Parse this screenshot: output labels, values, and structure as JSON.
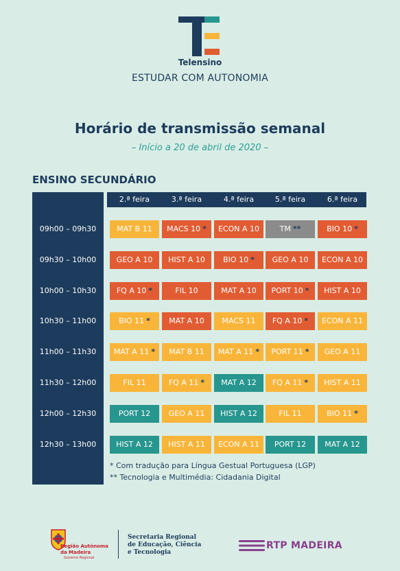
{
  "brand": {
    "name": "Telensino",
    "tagline": "ESTUDAR COM AUTONOMIA"
  },
  "title": "Horário de transmissão semanal",
  "subtitle": "– Início a 20 de abril de 2020 –",
  "section": "ENSINO SECUNDÁRIO",
  "days": [
    "2.ª feira",
    "3.ª feira",
    "4.ª feira",
    "5.ª feira",
    "6.ª feira"
  ],
  "rows": [
    {
      "time": "09h00 – 09h30",
      "cells": [
        {
          "label": "MAT B 11",
          "mark": "",
          "color": "yellow"
        },
        {
          "label": "MACS 10",
          "mark": "*",
          "color": "orange"
        },
        {
          "label": "ECON A 10",
          "mark": "",
          "color": "orange"
        },
        {
          "label": "TM",
          "mark": "**",
          "color": "gray"
        },
        {
          "label": "BIO 10",
          "mark": "*",
          "color": "orange"
        }
      ]
    },
    {
      "time": "09h30 – 10h00",
      "cells": [
        {
          "label": "GEO A 10",
          "mark": "",
          "color": "orange"
        },
        {
          "label": "HIST A 10",
          "mark": "",
          "color": "orange"
        },
        {
          "label": "BIO 10",
          "mark": "*",
          "color": "orange"
        },
        {
          "label": "GEO A 10",
          "mark": "",
          "color": "orange"
        },
        {
          "label": "ECON A 10",
          "mark": "",
          "color": "orange"
        }
      ]
    },
    {
      "time": "10h00 – 10h30",
      "cells": [
        {
          "label": "FQ A 10",
          "mark": "*",
          "color": "orange"
        },
        {
          "label": "FIL 10",
          "mark": "",
          "color": "orange"
        },
        {
          "label": "MAT A 10",
          "mark": "",
          "color": "orange"
        },
        {
          "label": "PORT 10",
          "mark": "*",
          "color": "orange"
        },
        {
          "label": "HIST A 10",
          "mark": "",
          "color": "orange"
        }
      ]
    },
    {
      "time": "10h30 – 11h00",
      "cells": [
        {
          "label": "BIO 11",
          "mark": "*",
          "color": "yellow"
        },
        {
          "label": "MAT A 10",
          "mark": "",
          "color": "orange"
        },
        {
          "label": "MACS 11",
          "mark": "",
          "color": "yellow"
        },
        {
          "label": "FQ A 10",
          "mark": "*",
          "color": "orange"
        },
        {
          "label": "ECON A 11",
          "mark": "",
          "color": "yellow"
        }
      ]
    },
    {
      "time": "11h00 – 11h30",
      "cells": [
        {
          "label": "MAT A 11",
          "mark": "*",
          "color": "yellow"
        },
        {
          "label": "MAT B 11",
          "mark": "",
          "color": "yellow"
        },
        {
          "label": "MAT A 11",
          "mark": "*",
          "color": "yellow"
        },
        {
          "label": "PORT 11",
          "mark": "*",
          "color": "yellow"
        },
        {
          "label": "GEO A 11",
          "mark": "",
          "color": "yellow"
        }
      ]
    },
    {
      "time": "11h30 – 12h00",
      "cells": [
        {
          "label": "FIL 11",
          "mark": "",
          "color": "yellow"
        },
        {
          "label": "FQ A 11",
          "mark": "*",
          "color": "yellow"
        },
        {
          "label": "MAT A 12",
          "mark": "",
          "color": "teal"
        },
        {
          "label": "FQ A 11",
          "mark": "*",
          "color": "yellow"
        },
        {
          "label": "HIST A 11",
          "mark": "",
          "color": "yellow"
        }
      ]
    },
    {
      "time": "12h00 – 12h30",
      "cells": [
        {
          "label": "PORT 12",
          "mark": "",
          "color": "teal"
        },
        {
          "label": "GEO A 11",
          "mark": "",
          "color": "yellow"
        },
        {
          "label": "HIST A 12",
          "mark": "",
          "color": "teal"
        },
        {
          "label": "FIL 11",
          "mark": "",
          "color": "yellow"
        },
        {
          "label": "BIO 11",
          "mark": "*",
          "color": "yellow"
        }
      ]
    },
    {
      "time": "12h30 – 13h00",
      "cells": [
        {
          "label": "HIST A 12",
          "mark": "",
          "color": "teal"
        },
        {
          "label": "HIST A 11",
          "mark": "",
          "color": "yellow"
        },
        {
          "label": "ECON A 11",
          "mark": "",
          "color": "yellow"
        },
        {
          "label": "PORT 12",
          "mark": "",
          "color": "teal"
        },
        {
          "label": "MAT A 12",
          "mark": "",
          "color": "teal"
        }
      ]
    }
  ],
  "notes": [
    "* Com tradução para Língua Gestual Portuguesa (LGP)",
    "** Tecnologia e Multimédia: Cidadania Digital"
  ],
  "footer": {
    "raam_line1": "Região Autónoma",
    "raam_line2": "da Madeira",
    "raam_sub": "Governo Regional",
    "sec_line1": "Secretaria Regional",
    "sec_line2": "de Educação, Ciência",
    "sec_line3": "e Tecnologia",
    "rtp": "RTP MADEIRA"
  },
  "colors": {
    "navy": "#1d3b5c",
    "yellow": "#f9b53a",
    "orange": "#e25c33",
    "teal": "#27968e",
    "gray": "#8b8b8b",
    "background": "#d9ede6"
  }
}
